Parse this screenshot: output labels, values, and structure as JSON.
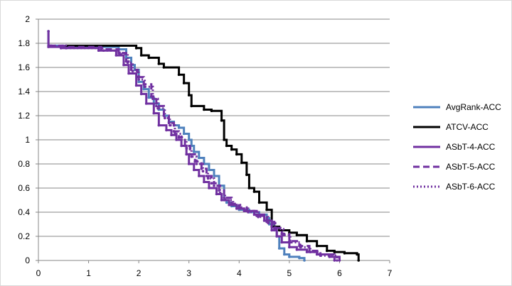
{
  "chart_data": {
    "type": "line",
    "xlim": [
      0,
      7
    ],
    "ylim": [
      0,
      2
    ],
    "xticks": [
      0,
      1,
      2,
      3,
      4,
      5,
      6,
      7
    ],
    "yticks": [
      0,
      0.2,
      0.4,
      0.6,
      0.8,
      1,
      1.2,
      1.4,
      1.6,
      1.8,
      2
    ],
    "xtick_labels": [
      "0",
      "1",
      "2",
      "3",
      "4",
      "5",
      "6",
      "7"
    ],
    "ytick_labels": [
      "0",
      "0.2",
      "0.4",
      "0.6",
      "0.8",
      "1",
      "1.2",
      "1.4",
      "1.6",
      "1.8",
      "2"
    ],
    "grid": "horizontal",
    "legend_position": "right",
    "series": [
      {
        "name": "AvgRank-ACC",
        "color": "#4f81bd",
        "dash": "solid",
        "step": true,
        "x": [
          0.2,
          0.2,
          0.5,
          1.1,
          1.6,
          1.75,
          1.85,
          1.92,
          2.0,
          2.1,
          2.2,
          2.3,
          2.4,
          2.5,
          2.6,
          2.7,
          2.8,
          2.9,
          3.0,
          3.05,
          3.1,
          3.2,
          3.3,
          3.4,
          3.5,
          3.6,
          3.7,
          3.75,
          3.85,
          4.0,
          4.2,
          4.4,
          4.55,
          4.6,
          4.7,
          4.75,
          4.8,
          4.9,
          5.0,
          5.2,
          5.3
        ],
        "y": [
          1.9,
          1.78,
          1.77,
          1.77,
          1.75,
          1.68,
          1.62,
          1.58,
          1.48,
          1.42,
          1.35,
          1.3,
          1.25,
          1.2,
          1.15,
          1.12,
          1.1,
          1.05,
          1.0,
          0.95,
          0.9,
          0.85,
          0.8,
          0.75,
          0.7,
          0.62,
          0.5,
          0.48,
          0.45,
          0.42,
          0.4,
          0.38,
          0.35,
          0.3,
          0.25,
          0.2,
          0.1,
          0.05,
          0.03,
          0.02,
          0.0
        ]
      },
      {
        "name": "ATCV-ACC",
        "color": "#000000",
        "dash": "solid",
        "step": true,
        "x": [
          0.55,
          1.95,
          2.05,
          2.2,
          2.4,
          2.5,
          2.8,
          2.9,
          3.0,
          3.05,
          3.3,
          3.45,
          3.65,
          3.7,
          3.75,
          3.85,
          3.95,
          4.05,
          4.15,
          4.2,
          4.3,
          4.4,
          4.55,
          4.65,
          4.8,
          5.0,
          5.15,
          5.35,
          5.55,
          5.75,
          5.9,
          6.1,
          6.35,
          6.38
        ],
        "y": [
          1.78,
          1.76,
          1.7,
          1.68,
          1.63,
          1.6,
          1.54,
          1.47,
          1.37,
          1.28,
          1.25,
          1.24,
          1.16,
          1.0,
          0.95,
          0.92,
          0.88,
          0.81,
          0.71,
          0.6,
          0.57,
          0.48,
          0.42,
          0.28,
          0.25,
          0.23,
          0.21,
          0.16,
          0.12,
          0.08,
          0.07,
          0.06,
          0.05,
          0.0
        ]
      },
      {
        "name": "ASbT-4-ACC",
        "color": "#7030a0",
        "dash": "solid",
        "step": true,
        "x": [
          0.2,
          0.2,
          0.45,
          1.2,
          1.55,
          1.7,
          1.8,
          1.95,
          2.05,
          2.15,
          2.3,
          2.4,
          2.55,
          2.65,
          2.75,
          2.85,
          2.95,
          3.0,
          3.1,
          3.2,
          3.3,
          3.4,
          3.55,
          3.65,
          3.8,
          3.95,
          4.1,
          4.3,
          4.5,
          4.65,
          4.75,
          4.85,
          5.0,
          5.15,
          5.35,
          5.55,
          5.8,
          6.0
        ],
        "y": [
          1.9,
          1.77,
          1.76,
          1.74,
          1.7,
          1.62,
          1.55,
          1.45,
          1.38,
          1.3,
          1.22,
          1.12,
          1.08,
          1.04,
          1.0,
          0.95,
          0.88,
          0.8,
          0.75,
          0.7,
          0.65,
          0.6,
          0.55,
          0.5,
          0.46,
          0.43,
          0.41,
          0.38,
          0.33,
          0.25,
          0.2,
          0.15,
          0.11,
          0.09,
          0.07,
          0.05,
          0.03,
          0.0
        ]
      },
      {
        "name": "ASbT-5-ACC",
        "color": "#7030a0",
        "dash": "dashed",
        "step": true,
        "x": [
          0.22,
          0.5,
          1.25,
          1.6,
          1.75,
          1.85,
          1.98,
          2.1,
          2.25,
          2.35,
          2.5,
          2.6,
          2.7,
          2.8,
          2.92,
          3.02,
          3.12,
          3.25,
          3.35,
          3.45,
          3.6,
          3.7,
          3.85,
          4.0,
          4.15,
          4.35,
          4.55,
          4.7,
          4.85,
          5.0,
          5.2,
          5.4,
          5.6,
          5.9
        ],
        "y": [
          1.78,
          1.77,
          1.75,
          1.72,
          1.65,
          1.58,
          1.52,
          1.46,
          1.36,
          1.28,
          1.2,
          1.14,
          1.07,
          1.02,
          0.95,
          0.88,
          0.82,
          0.76,
          0.7,
          0.64,
          0.58,
          0.52,
          0.47,
          0.44,
          0.41,
          0.37,
          0.32,
          0.27,
          0.22,
          0.16,
          0.12,
          0.08,
          0.05,
          0.0
        ]
      },
      {
        "name": "ASbT-6-ACC",
        "color": "#7030a0",
        "dash": "dotted",
        "step": true,
        "x": [
          0.25,
          0.55,
          1.3,
          1.62,
          1.78,
          1.88,
          2.0,
          2.12,
          2.28,
          2.38,
          2.52,
          2.62,
          2.72,
          2.85,
          2.95,
          3.05,
          3.15,
          3.28,
          3.38,
          3.5,
          3.62,
          3.72,
          3.88,
          4.02,
          4.18,
          4.38,
          4.58,
          4.72,
          4.88,
          5.02,
          5.22,
          5.42,
          5.62,
          5.95
        ],
        "y": [
          1.78,
          1.76,
          1.74,
          1.71,
          1.64,
          1.57,
          1.5,
          1.44,
          1.34,
          1.26,
          1.18,
          1.12,
          1.05,
          1.0,
          0.93,
          0.86,
          0.8,
          0.74,
          0.68,
          0.62,
          0.56,
          0.5,
          0.46,
          0.43,
          0.4,
          0.36,
          0.31,
          0.26,
          0.21,
          0.15,
          0.11,
          0.07,
          0.04,
          0.0
        ]
      }
    ]
  }
}
